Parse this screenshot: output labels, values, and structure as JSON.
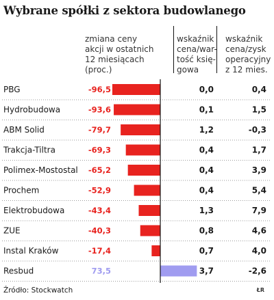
{
  "title": "Wybrane spółki z sektora budowlanego",
  "headers": {
    "change": "zmiana ceny\nakcji w ostatnich\n12 miesiącach\n(proc.)",
    "pb": "wskaźnik\ncena/war-\ntość księ-\ngowa",
    "pe": "wskaźnik\ncena/zysk\noperacyjny\nz 12 mies."
  },
  "colors": {
    "negative": "#e8231f",
    "positive": "#a09cf0",
    "axis": "#111111"
  },
  "chart_data": {
    "type": "bar",
    "orientation": "horizontal",
    "categories": [
      "PBG",
      "Hydrobudowa",
      "ABM Solid",
      "Trakcja-Tiltra",
      "Polimex-Mostostal",
      "Prochem",
      "Elektrobudowa",
      "ZUE",
      "Instal Kraków",
      "Resbud"
    ],
    "values": [
      -96.5,
      -93.6,
      -79.7,
      -69.3,
      -65.2,
      -52.9,
      -43.4,
      -40.3,
      -17.4,
      73.5
    ],
    "value_labels": [
      "-96,5",
      "-93,6",
      "-79,7",
      "-69,3",
      "-65,2",
      "-52,9",
      "-43,4",
      "-40,3",
      "-17,4",
      "73,5"
    ],
    "price_to_book": [
      "0,0",
      "0,1",
      "1,2",
      "0,4",
      "0,4",
      "0,4",
      "1,3",
      "0,8",
      "0,7",
      "3,7"
    ],
    "price_to_operating_earnings": [
      "0,4",
      "1,5",
      "-0,3",
      "1,7",
      "3,9",
      "5,4",
      "7,9",
      "4,6",
      "4,0",
      "-2,6"
    ],
    "xlim": [
      -100,
      100
    ]
  },
  "source": "Źródło: Stockwatch",
  "credit": "ŁR"
}
